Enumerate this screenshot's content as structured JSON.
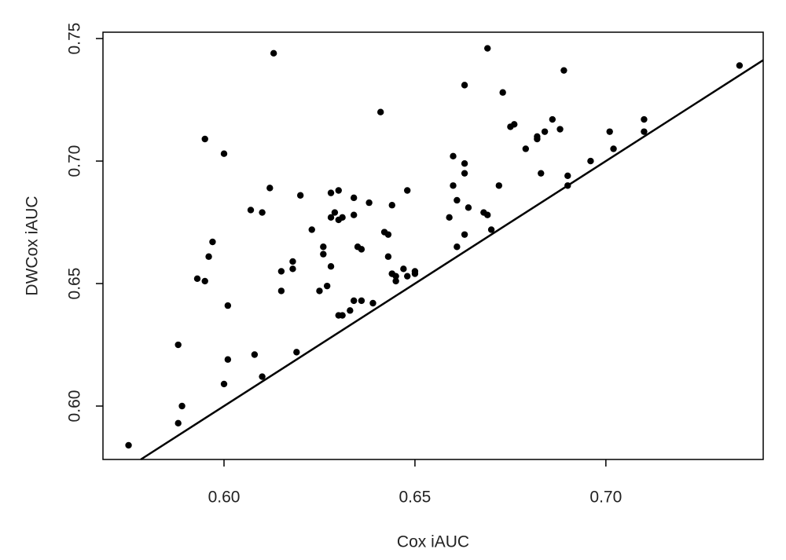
{
  "chart_data": {
    "type": "scatter",
    "xlabel": "Cox iAUC",
    "ylabel": "DWCox iAUC",
    "color": "#000000",
    "reference_line": {
      "slope": 1,
      "intercept": 0
    },
    "xlim": [
      0.5683,
      0.7412
    ],
    "ylim": [
      0.5782,
      0.7526
    ],
    "xticks": [
      {
        "value": 0.6,
        "label": "0.60"
      },
      0.65,
      {
        "value": 0.7,
        "label": "0.70"
      }
    ],
    "yticks": [
      {
        "value": 0.6,
        "label": "0.60"
      },
      0.65,
      {
        "value": 0.7,
        "label": "0.70"
      },
      0.75
    ],
    "x": [
      0.575,
      0.588,
      0.589,
      0.588,
      0.593,
      0.595,
      0.596,
      0.595,
      0.597,
      0.6,
      0.601,
      0.601,
      0.6,
      0.607,
      0.608,
      0.61,
      0.61,
      0.612,
      0.613,
      0.615,
      0.615,
      0.618,
      0.618,
      0.619,
      0.62,
      0.623,
      0.625,
      0.626,
      0.626,
      0.627,
      0.628,
      0.628,
      0.628,
      0.629,
      0.63,
      0.63,
      0.63,
      0.631,
      0.631,
      0.633,
      0.634,
      0.634,
      0.634,
      0.635,
      0.636,
      0.636,
      0.638,
      0.639,
      0.641,
      0.642,
      0.643,
      0.643,
      0.644,
      0.644,
      0.644,
      0.645,
      0.645,
      0.647,
      0.648,
      0.648,
      0.65,
      0.65,
      0.659,
      0.66,
      0.66,
      0.661,
      0.661,
      0.663,
      0.663,
      0.663,
      0.663,
      0.664,
      0.668,
      0.669,
      0.669,
      0.67,
      0.672,
      0.673,
      0.675,
      0.676,
      0.679,
      0.682,
      0.682,
      0.683,
      0.684,
      0.686,
      0.688,
      0.689,
      0.69,
      0.69,
      0.696,
      0.701,
      0.702,
      0.71,
      0.71,
      0.735
    ],
    "values": [
      0.584,
      0.625,
      0.6,
      0.593,
      0.652,
      0.709,
      0.661,
      0.651,
      0.667,
      0.703,
      0.641,
      0.619,
      0.609,
      0.68,
      0.621,
      0.679,
      0.612,
      0.689,
      0.744,
      0.655,
      0.647,
      0.659,
      0.656,
      0.622,
      0.686,
      0.672,
      0.647,
      0.665,
      0.662,
      0.649,
      0.657,
      0.677,
      0.687,
      0.679,
      0.637,
      0.688,
      0.676,
      0.677,
      0.637,
      0.639,
      0.685,
      0.643,
      0.678,
      0.665,
      0.664,
      0.643,
      0.683,
      0.642,
      0.72,
      0.671,
      0.67,
      0.661,
      0.654,
      0.654,
      0.682,
      0.651,
      0.653,
      0.656,
      0.688,
      0.653,
      0.654,
      0.655,
      0.677,
      0.702,
      0.69,
      0.665,
      0.684,
      0.67,
      0.731,
      0.695,
      0.699,
      0.681,
      0.679,
      0.746,
      0.678,
      0.672,
      0.69,
      0.728,
      0.714,
      0.715,
      0.705,
      0.709,
      0.71,
      0.695,
      0.712,
      0.717,
      0.713,
      0.737,
      0.694,
      0.69,
      0.7,
      0.712,
      0.705,
      0.717,
      0.712,
      0.739
    ]
  }
}
